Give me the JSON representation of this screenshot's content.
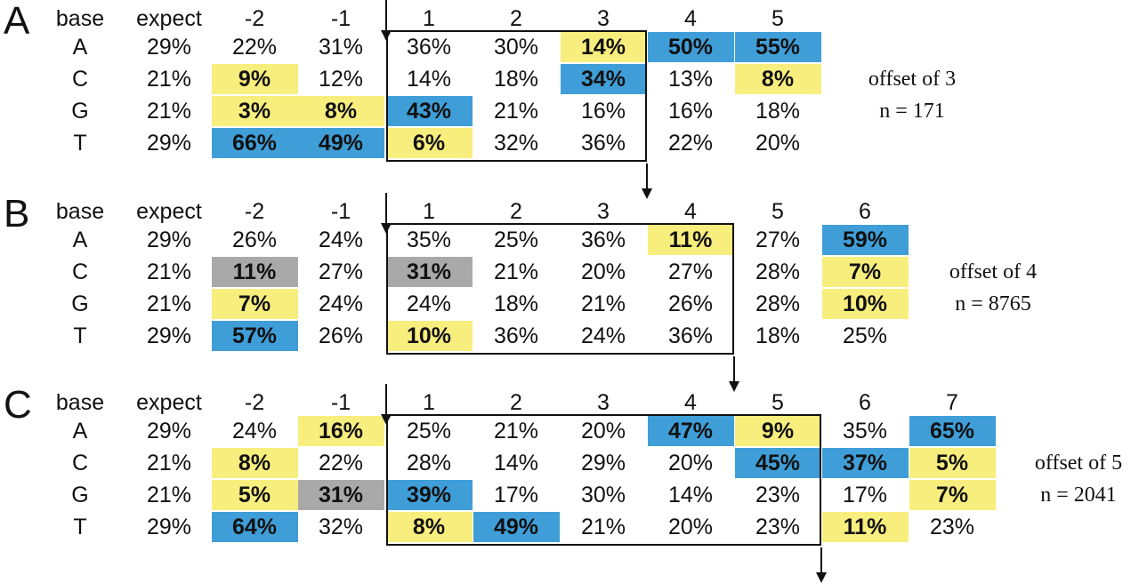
{
  "panels": [
    {
      "label": "A",
      "header": [
        "base",
        "expect",
        "-2",
        "-1",
        "1",
        "2",
        "3",
        "4",
        "5"
      ],
      "rows": [
        [
          "A",
          "29%",
          "22%",
          "31%",
          "36%",
          "30%",
          "14%",
          "50%",
          "55%"
        ],
        [
          "C",
          "21%",
          "9%",
          "12%",
          "14%",
          "18%",
          "34%",
          "13%",
          "8%"
        ],
        [
          "G",
          "21%",
          "3%",
          "8%",
          "43%",
          "21%",
          "16%",
          "16%",
          "18%"
        ],
        [
          "T",
          "29%",
          "66%",
          "49%",
          "6%",
          "32%",
          "36%",
          "22%",
          "20%"
        ]
      ],
      "highlights": [
        [
          "",
          "",
          "",
          "",
          "",
          "",
          "yellow",
          "blue",
          "blue"
        ],
        [
          "",
          "",
          "yellow",
          "",
          "",
          "",
          "blue",
          "",
          "yellow"
        ],
        [
          "",
          "",
          "yellow",
          "yellow",
          "blue",
          "",
          "",
          "",
          ""
        ],
        [
          "",
          "",
          "blue",
          "blue",
          "yellow",
          "",
          "",
          "",
          ""
        ]
      ],
      "offset_text": "offset of 3",
      "n_text": "n = 171"
    },
    {
      "label": "B",
      "header": [
        "base",
        "expect",
        "-2",
        "-1",
        "1",
        "2",
        "3",
        "4",
        "5",
        "6"
      ],
      "rows": [
        [
          "A",
          "29%",
          "26%",
          "24%",
          "35%",
          "25%",
          "36%",
          "11%",
          "27%",
          "59%"
        ],
        [
          "C",
          "21%",
          "11%",
          "27%",
          "31%",
          "21%",
          "20%",
          "27%",
          "28%",
          "7%"
        ],
        [
          "G",
          "21%",
          "7%",
          "24%",
          "24%",
          "18%",
          "21%",
          "26%",
          "28%",
          "10%"
        ],
        [
          "T",
          "29%",
          "57%",
          "26%",
          "10%",
          "36%",
          "24%",
          "36%",
          "18%",
          "25%"
        ]
      ],
      "highlights": [
        [
          "",
          "",
          "",
          "",
          "",
          "",
          "",
          "yellow",
          "",
          "blue"
        ],
        [
          "",
          "",
          "gray",
          "",
          "gray",
          "",
          "",
          "",
          "",
          "yellow"
        ],
        [
          "",
          "",
          "yellow",
          "",
          "",
          "",
          "",
          "",
          "",
          "yellow"
        ],
        [
          "",
          "",
          "blue",
          "",
          "yellow",
          "",
          "",
          "",
          "",
          ""
        ]
      ],
      "offset_text": "offset of 4",
      "n_text": "n = 8765"
    },
    {
      "label": "C",
      "header": [
        "base",
        "expect",
        "-2",
        "-1",
        "1",
        "2",
        "3",
        "4",
        "5",
        "6",
        "7"
      ],
      "rows": [
        [
          "A",
          "29%",
          "24%",
          "16%",
          "25%",
          "21%",
          "20%",
          "47%",
          "9%",
          "35%",
          "65%"
        ],
        [
          "C",
          "21%",
          "8%",
          "22%",
          "28%",
          "14%",
          "29%",
          "20%",
          "45%",
          "37%",
          "5%"
        ],
        [
          "G",
          "21%",
          "5%",
          "31%",
          "39%",
          "17%",
          "30%",
          "14%",
          "23%",
          "17%",
          "7%"
        ],
        [
          "T",
          "29%",
          "64%",
          "32%",
          "8%",
          "49%",
          "21%",
          "20%",
          "23%",
          "11%",
          "23%"
        ]
      ],
      "highlights": [
        [
          "",
          "",
          "",
          "yellow",
          "",
          "",
          "",
          "blue",
          "yellow",
          "",
          "blue"
        ],
        [
          "",
          "",
          "yellow",
          "",
          "",
          "",
          "",
          "",
          "blue",
          "blue",
          "yellow"
        ],
        [
          "",
          "",
          "yellow",
          "gray",
          "blue",
          "",
          "",
          "",
          "",
          "",
          "yellow"
        ],
        [
          "",
          "",
          "blue",
          "",
          "yellow",
          "blue",
          "",
          "",
          "",
          "yellow",
          ""
        ]
      ],
      "offset_text": "offset of 5",
      "n_text": "n = 2041"
    }
  ],
  "colors": {
    "yellow": "#f8ee7e",
    "blue": "#3f9ed8",
    "gray": "#a9a9a9"
  }
}
